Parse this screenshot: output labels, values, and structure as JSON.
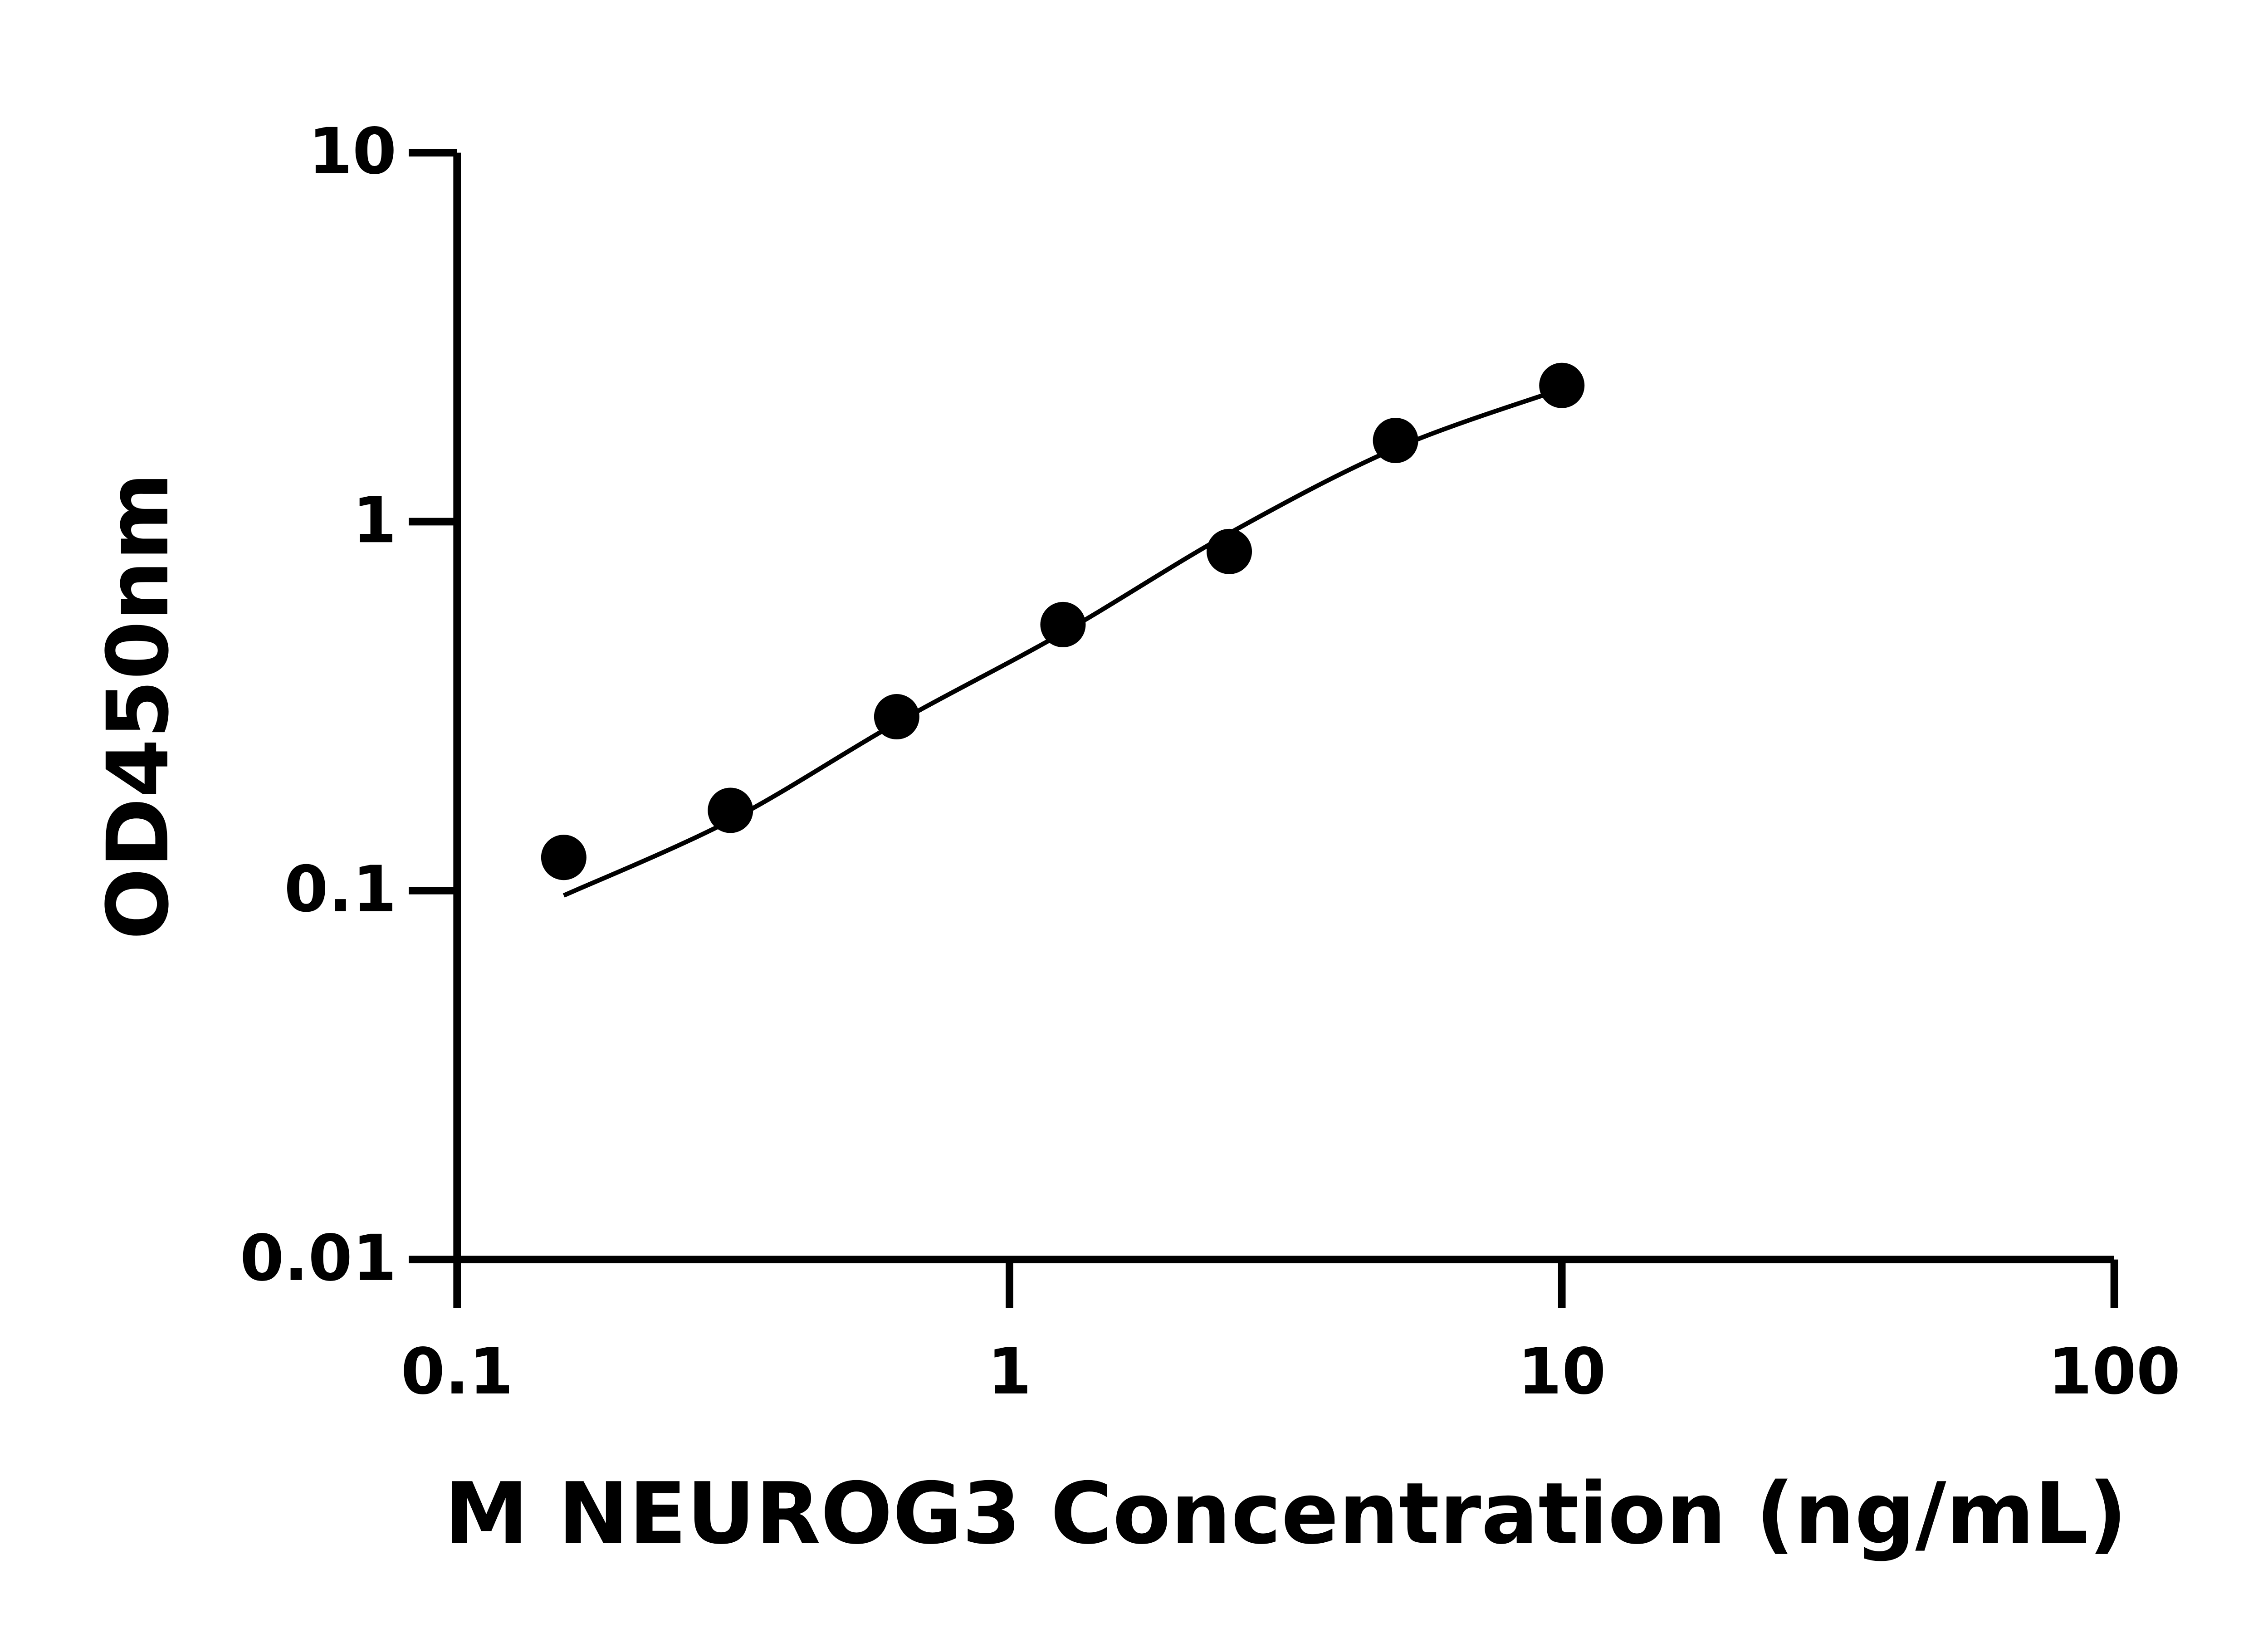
{
  "chart_data": {
    "type": "scatter",
    "x_label": "M NEUROG3 Concentration (ng/mL)",
    "y_label": "OD450nm",
    "xscale": "log",
    "yscale": "log",
    "xlim": [
      0.1,
      100
    ],
    "xticks": [
      0.1,
      1,
      10,
      100
    ],
    "ylim": [
      0.01,
      10
    ],
    "yticks": [
      0.01,
      0.1,
      1,
      10
    ],
    "series": [
      {
        "kind": "points",
        "color": "#000000",
        "x": [
          0.156,
          0.3125,
          0.625,
          1.25,
          2.5,
          5,
          10
        ],
        "values": [
          0.123,
          0.165,
          0.296,
          0.526,
          0.83,
          1.66,
          2.34
        ]
      },
      {
        "kind": "fit",
        "color": "#000000",
        "x": [
          0.156,
          0.3125,
          0.625,
          1.25,
          2.5,
          5,
          10
        ],
        "values": [
          0.097,
          0.155,
          0.285,
          0.5,
          0.93,
          1.58,
          2.29
        ]
      }
    ]
  }
}
